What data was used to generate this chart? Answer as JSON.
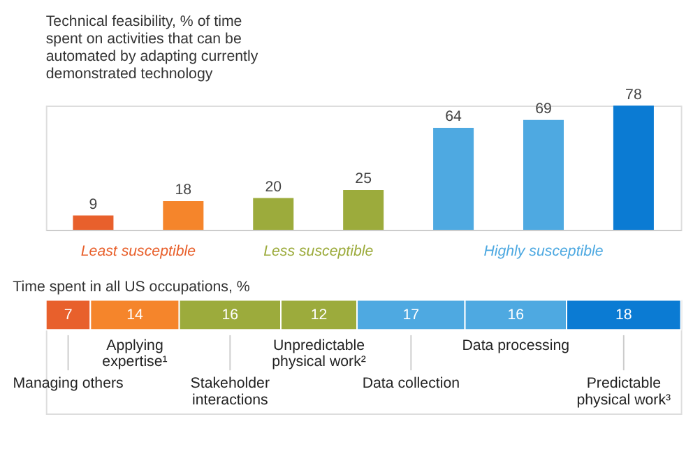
{
  "chart_data": [
    {
      "type": "bar",
      "title": "Technical feasibility, % of time spent on activities that can be automated by adapting currently demonstrated technology",
      "categories": [
        null,
        null,
        null,
        null,
        null,
        null,
        null
      ],
      "values": [
        9,
        18,
        20,
        25,
        64,
        69,
        78
      ],
      "colors": [
        "#e8602c",
        "#f5852b",
        "#9cab3c",
        "#9cab3c",
        "#4ea9e1",
        "#4ea9e1",
        "#0b7bd3"
      ],
      "data_labels": true,
      "annotations": [
        "Least susceptible",
        "Less susceptible",
        "Highly susceptible"
      ]
    },
    {
      "type": "bar",
      "orientation": "horizontal",
      "stacked": true,
      "title": "Time spent in all US occupations, %",
      "categories": [
        null
      ],
      "xlim": [
        0,
        100
      ],
      "data_labels": true,
      "series": [
        {
          "name": "Managing others",
          "color": "#e8602c",
          "values": [
            7
          ]
        },
        {
          "name": "Applying expertise¹",
          "color": "#f5852b",
          "values": [
            14
          ]
        },
        {
          "name": "Stakeholder interactions",
          "color": "#9cab3c",
          "values": [
            16
          ]
        },
        {
          "name": "Unpredictable physical work²",
          "color": "#9cab3c",
          "values": [
            12
          ]
        },
        {
          "name": "Data collection",
          "color": "#4ea9e1",
          "values": [
            17
          ]
        },
        {
          "name": "Data processing",
          "color": "#4ea9e1",
          "values": [
            16
          ]
        },
        {
          "name": "Predictable physical work³",
          "color": "#0b7bd3",
          "values": [
            18
          ]
        }
      ]
    }
  ]
}
